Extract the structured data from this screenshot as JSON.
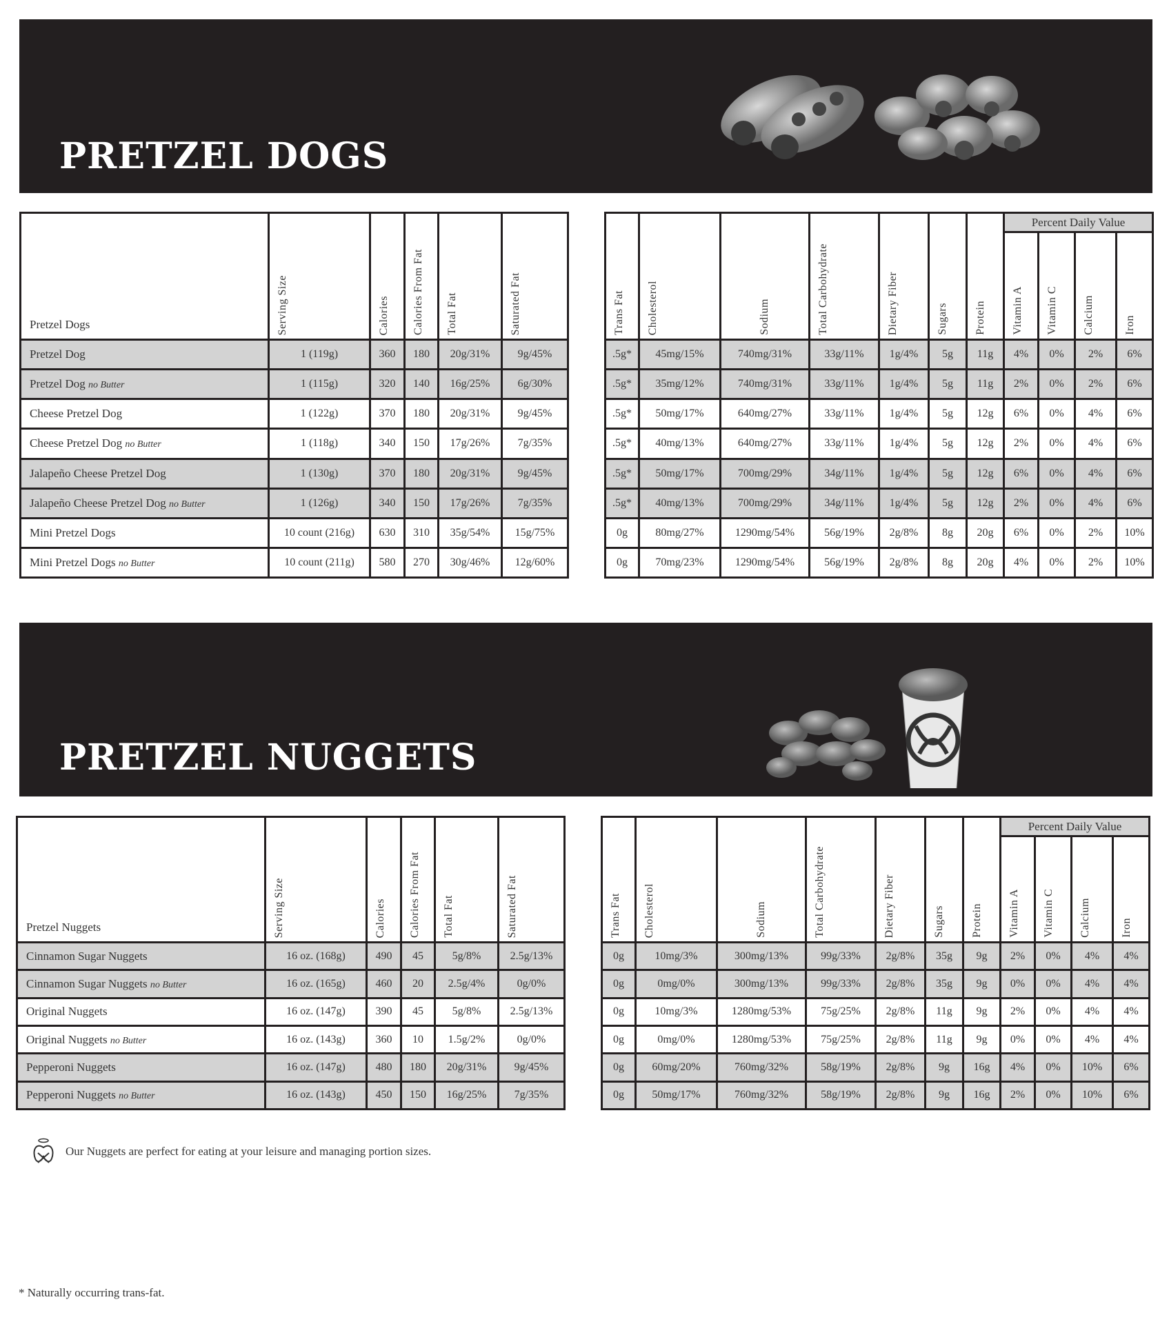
{
  "colors": {
    "banner": "#231f20",
    "shaded_row": "#d3d3d3",
    "border": "#231f20"
  },
  "left_headers": [
    "Serving Size",
    "Calories",
    "Calories From Fat",
    "Total Fat",
    "Saturated Fat"
  ],
  "right_headers": [
    "Trans Fat",
    "Cholesterol",
    "Sodium",
    "Total Carbohydrate",
    "Dietary Fiber",
    "Sugars",
    "Protein"
  ],
  "pdv_label": "Percent Daily Value",
  "pdv_headers": [
    "Vitamin A",
    "Vitamin C",
    "Calcium",
    "Iron"
  ],
  "sections": [
    {
      "title": "PRETZEL DOGS",
      "image": "pretzel-dogs-photo",
      "name_header": "Pretzel Dogs",
      "rows": [
        {
          "name": "Pretzel Dog",
          "suffix": "",
          "shaded": true,
          "left": [
            "1 (119g)",
            "360",
            "180",
            "20g/31%",
            "9g/45%"
          ],
          "right": [
            ".5g*",
            "45mg/15%",
            "740mg/31%",
            "33g/11%",
            "1g/4%",
            "5g",
            "11g",
            "4%",
            "0%",
            "2%",
            "6%"
          ]
        },
        {
          "name": "Pretzel Dog",
          "suffix": "no Butter",
          "shaded": true,
          "left": [
            "1 (115g)",
            "320",
            "140",
            "16g/25%",
            "6g/30%"
          ],
          "right": [
            ".5g*",
            "35mg/12%",
            "740mg/31%",
            "33g/11%",
            "1g/4%",
            "5g",
            "11g",
            "2%",
            "0%",
            "2%",
            "6%"
          ]
        },
        {
          "name": "Cheese Pretzel Dog",
          "suffix": "",
          "shaded": false,
          "left": [
            "1 (122g)",
            "370",
            "180",
            "20g/31%",
            "9g/45%"
          ],
          "right": [
            ".5g*",
            "50mg/17%",
            "640mg/27%",
            "33g/11%",
            "1g/4%",
            "5g",
            "12g",
            "6%",
            "0%",
            "4%",
            "6%"
          ]
        },
        {
          "name": "Cheese Pretzel Dog",
          "suffix": "no Butter",
          "shaded": false,
          "left": [
            "1 (118g)",
            "340",
            "150",
            "17g/26%",
            "7g/35%"
          ],
          "right": [
            ".5g*",
            "40mg/13%",
            "640mg/27%",
            "33g/11%",
            "1g/4%",
            "5g",
            "12g",
            "2%",
            "0%",
            "4%",
            "6%"
          ]
        },
        {
          "name": "Jalapeño Cheese Pretzel Dog",
          "suffix": "",
          "shaded": true,
          "left": [
            "1 (130g)",
            "370",
            "180",
            "20g/31%",
            "9g/45%"
          ],
          "right": [
            ".5g*",
            "50mg/17%",
            "700mg/29%",
            "34g/11%",
            "1g/4%",
            "5g",
            "12g",
            "6%",
            "0%",
            "4%",
            "6%"
          ]
        },
        {
          "name": "Jalapeño Cheese Pretzel Dog",
          "suffix": "no Butter",
          "shaded": true,
          "left": [
            "1 (126g)",
            "340",
            "150",
            "17g/26%",
            "7g/35%"
          ],
          "right": [
            ".5g*",
            "40mg/13%",
            "700mg/29%",
            "34g/11%",
            "1g/4%",
            "5g",
            "12g",
            "2%",
            "0%",
            "4%",
            "6%"
          ]
        },
        {
          "name": "Mini Pretzel Dogs",
          "suffix": "",
          "shaded": false,
          "left": [
            "10 count (216g)",
            "630",
            "310",
            "35g/54%",
            "15g/75%"
          ],
          "right": [
            "0g",
            "80mg/27%",
            "1290mg/54%",
            "56g/19%",
            "2g/8%",
            "8g",
            "20g",
            "6%",
            "0%",
            "2%",
            "10%"
          ]
        },
        {
          "name": "Mini Pretzel Dogs",
          "suffix": "no Butter",
          "shaded": false,
          "left": [
            "10 count (211g)",
            "580",
            "270",
            "30g/46%",
            "12g/60%"
          ],
          "right": [
            "0g",
            "70mg/23%",
            "1290mg/54%",
            "56g/19%",
            "2g/8%",
            "8g",
            "20g",
            "4%",
            "0%",
            "2%",
            "10%"
          ]
        }
      ]
    },
    {
      "title": "PRETZEL NUGGETS",
      "image": "pretzel-nuggets-photo",
      "name_header": "Pretzel Nuggets",
      "rows": [
        {
          "name": "Cinnamon Sugar Nuggets",
          "suffix": "",
          "shaded": true,
          "left": [
            "16 oz. (168g)",
            "490",
            "45",
            "5g/8%",
            "2.5g/13%"
          ],
          "right": [
            "0g",
            "10mg/3%",
            "300mg/13%",
            "99g/33%",
            "2g/8%",
            "35g",
            "9g",
            "2%",
            "0%",
            "4%",
            "4%"
          ]
        },
        {
          "name": "Cinnamon Sugar Nuggets",
          "suffix": "no Butter",
          "shaded": true,
          "left": [
            "16 oz. (165g)",
            "460",
            "20",
            "2.5g/4%",
            "0g/0%"
          ],
          "right": [
            "0g",
            "0mg/0%",
            "300mg/13%",
            "99g/33%",
            "2g/8%",
            "35g",
            "9g",
            "0%",
            "0%",
            "4%",
            "4%"
          ]
        },
        {
          "name": "Original Nuggets",
          "suffix": "",
          "shaded": false,
          "left": [
            "16 oz. (147g)",
            "390",
            "45",
            "5g/8%",
            "2.5g/13%"
          ],
          "right": [
            "0g",
            "10mg/3%",
            "1280mg/53%",
            "75g/25%",
            "2g/8%",
            "11g",
            "9g",
            "2%",
            "0%",
            "4%",
            "4%"
          ]
        },
        {
          "name": "Original Nuggets",
          "suffix": "no Butter",
          "shaded": false,
          "left": [
            "16 oz. (143g)",
            "360",
            "10",
            "1.5g/2%",
            "0g/0%"
          ],
          "right": [
            "0g",
            "0mg/0%",
            "1280mg/53%",
            "75g/25%",
            "2g/8%",
            "11g",
            "9g",
            "0%",
            "0%",
            "4%",
            "4%"
          ]
        },
        {
          "name": "Pepperoni Nuggets",
          "suffix": "",
          "shaded": true,
          "left": [
            "16 oz. (147g)",
            "480",
            "180",
            "20g/31%",
            "9g/45%"
          ],
          "right": [
            "0g",
            "60mg/20%",
            "760mg/32%",
            "58g/19%",
            "2g/8%",
            "9g",
            "16g",
            "4%",
            "0%",
            "10%",
            "6%"
          ]
        },
        {
          "name": "Pepperoni Nuggets",
          "suffix": "no Butter",
          "shaded": true,
          "left": [
            "16 oz. (143g)",
            "450",
            "150",
            "16g/25%",
            "7g/35%"
          ],
          "right": [
            "0g",
            "50mg/17%",
            "760mg/32%",
            "58g/19%",
            "2g/8%",
            "9g",
            "16g",
            "2%",
            "0%",
            "10%",
            "6%"
          ]
        }
      ]
    }
  ],
  "nugget_note": {
    "icon": "pretzel-halo-icon",
    "text": "Our Nuggets are perfect for eating at your leisure and managing portion sizes."
  },
  "footnote": "* Naturally occurring trans-fat."
}
